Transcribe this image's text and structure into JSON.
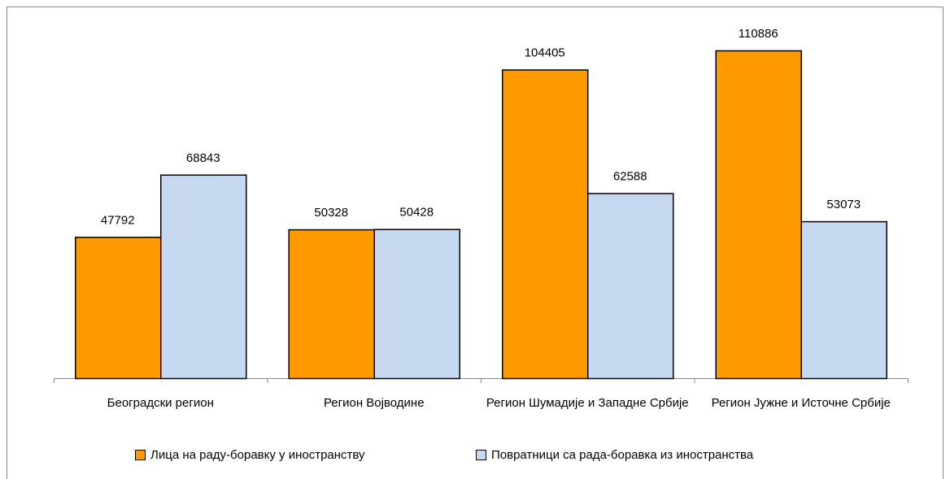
{
  "chart_data": {
    "type": "bar",
    "categories": [
      "Београдски регион",
      "Регион Војводине",
      "Регион Шумадије и Западне Србије",
      "Регион Јужне и Источне Србије"
    ],
    "series": [
      {
        "name": "Лица на раду-боравку у иностранству",
        "color": "#ff9900",
        "values": [
          47792,
          50328,
          104405,
          110886
        ]
      },
      {
        "name": "Повратници са рада-боравка из иностранства",
        "color": "#c6d9f1",
        "values": [
          68843,
          50428,
          62588,
          53073
        ]
      }
    ]
  }
}
